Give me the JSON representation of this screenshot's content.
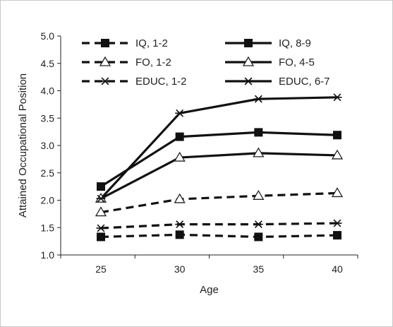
{
  "chart_data": {
    "type": "line",
    "title": "",
    "xlabel": "Age",
    "ylabel": "Attained Occupational Position",
    "x": [
      25,
      30,
      35,
      40
    ],
    "xticks": [
      "25",
      "30",
      "35",
      "40"
    ],
    "ylim": [
      1.0,
      5.0
    ],
    "yticks": [
      "1.0",
      "1.5",
      "2.0",
      "2.5",
      "3.0",
      "3.5",
      "4.0",
      "4.5",
      "5.0"
    ],
    "grid": false,
    "legend_position": "top",
    "series": [
      {
        "name": "IQ, 1-2",
        "values": [
          1.33,
          1.37,
          1.33,
          1.36
        ],
        "line": "dashed",
        "marker": "square-filled"
      },
      {
        "name": "IQ, 8-9",
        "values": [
          2.25,
          3.16,
          3.24,
          3.19
        ],
        "line": "solid",
        "marker": "square-filled"
      },
      {
        "name": "FO, 1-2",
        "values": [
          1.78,
          2.02,
          2.08,
          2.13
        ],
        "line": "dashed",
        "marker": "triangle-open"
      },
      {
        "name": "FO, 4-5",
        "values": [
          2.03,
          2.78,
          2.86,
          2.82
        ],
        "line": "solid",
        "marker": "triangle-open"
      },
      {
        "name": "EDUC, 1-2",
        "values": [
          1.49,
          1.56,
          1.56,
          1.58
        ],
        "line": "dashed",
        "marker": "asterisk"
      },
      {
        "name": "EDUC, 6-7",
        "values": [
          2.03,
          3.59,
          3.85,
          3.88
        ],
        "line": "solid",
        "marker": "asterisk"
      }
    ]
  }
}
